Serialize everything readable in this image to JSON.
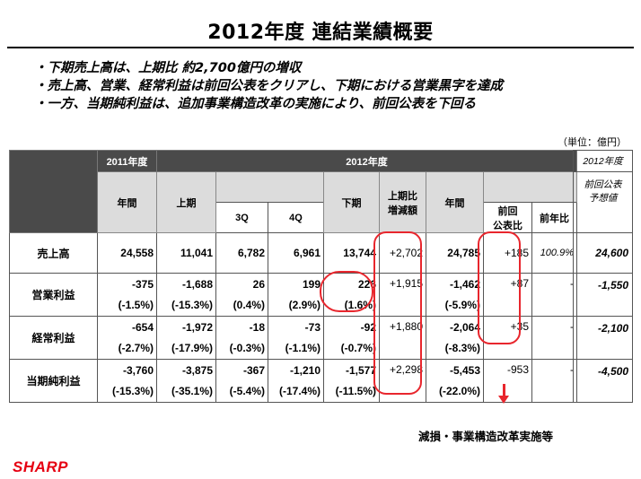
{
  "title": "2012年度 連結業績概要",
  "bullets": [
    "・下期売上高は、上期比 約2,700億円の増収",
    "・売上高、営業、経常利益は前回公表をクリアし、下期における営業黒字を達成",
    "・一方、当期純利益は、追加事業構造改革の実施により、前回公表を下回る"
  ],
  "unit": "（単位：億円）",
  "headers": {
    "fy2011": "2011年度",
    "fy2012": "2012年度",
    "annual": "年間",
    "first_half": "上期",
    "q3": "3Q",
    "q4": "4Q",
    "second_half": "下期",
    "vs_first_half_1": "上期比",
    "vs_first_half_2": "増減額",
    "annual2": "年間",
    "vs_prev_announce_1": "前回",
    "vs_prev_announce_2": "公表比",
    "yoy": "前年比"
  },
  "forecast_headers": {
    "fy2012": "2012年度",
    "prev_forecast_1": "前回公表",
    "prev_forecast_2": "予想値"
  },
  "rows": {
    "sales": {
      "label": "売上高",
      "fy2011": "24,558",
      "h1": "11,041",
      "q3": "6,782",
      "q4": "6,961",
      "h2": "13,744",
      "vs_h1": "+2,702",
      "annual": "24,785",
      "vs_prev": "+185",
      "yoy": "100.9%",
      "forecast": "24,600"
    },
    "op": {
      "label": "営業利益",
      "fy2011": "-375",
      "h1": "-1,688",
      "q3": "26",
      "q4": "199",
      "h2": "226",
      "vs_h1": "+1,915",
      "annual": "-1,462",
      "vs_prev": "+87",
      "yoy": "-",
      "forecast": "-1,550",
      "pct": {
        "fy2011": "(-1.5%)",
        "h1": "(-15.3%)",
        "q3": "(0.4%)",
        "q4": "(2.9%)",
        "h2": "(1.6%)",
        "annual": "(-5.9%)"
      }
    },
    "ord": {
      "label": "経常利益",
      "fy2011": "-654",
      "h1": "-1,972",
      "q3": "-18",
      "q4": "-73",
      "h2": "-92",
      "vs_h1": "+1,880",
      "annual": "-2,064",
      "vs_prev": "+35",
      "yoy": "-",
      "forecast": "-2,100",
      "pct": {
        "fy2011": "(-2.7%)",
        "h1": "(-17.9%)",
        "q3": "(-0.3%)",
        "q4": "(-1.1%)",
        "h2": "(-0.7%)",
        "annual": "(-8.3%)"
      }
    },
    "net": {
      "label": "当期純利益",
      "fy2011": "-3,760",
      "h1": "-3,875",
      "q3": "-367",
      "q4": "-1,210",
      "h2": "-1,577",
      "vs_h1": "+2,298",
      "annual": "-5,453",
      "vs_prev": "-953",
      "yoy": "-",
      "forecast": "-4,500",
      "pct": {
        "fy2011": "(-15.3%)",
        "h1": "(-35.1%)",
        "q3": "(-5.4%)",
        "q4": "(-17.4%)",
        "h2": "(-11.5%)",
        "annual": "(-22.0%)"
      }
    }
  },
  "note": "減損・事業構造改革実施等",
  "logo": "SHARP",
  "colors": {
    "accent_red": "#e8262d",
    "header_dark": "#4a4a4a",
    "header_light": "#dcdcdc",
    "logo_red": "#e60012"
  }
}
